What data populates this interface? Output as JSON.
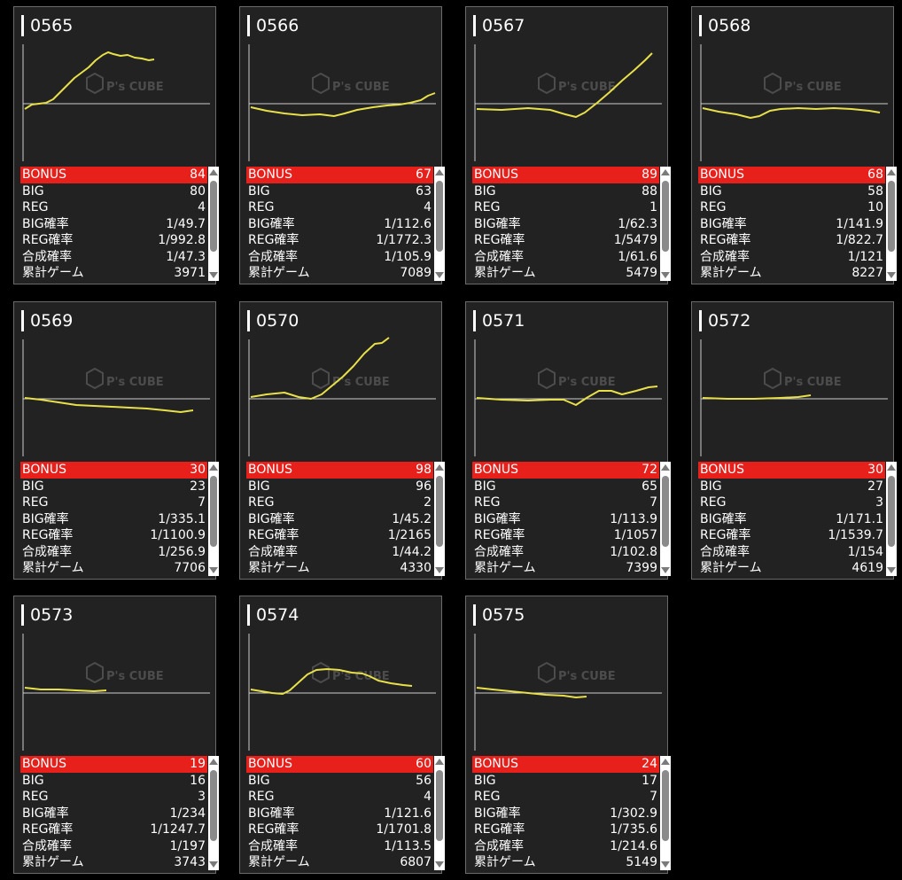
{
  "labels": {
    "bonus": "BONUS",
    "big": "BIG",
    "reg": "REG",
    "big_rate": "BIG確率",
    "reg_rate": "REG確率",
    "total_rate": "合成確率",
    "total_games": "累計ゲーム"
  },
  "watermark": "P's CUBE",
  "colors": {
    "graph_line": "#e8e04a",
    "bonus_bg": "#e8201b",
    "card_bg": "#222222"
  },
  "machines": [
    {
      "number": "0565",
      "bonus": "84",
      "big": "80",
      "reg": "4",
      "big_rate": "1/49.7",
      "reg_rate": "1/992.8",
      "total_rate": "1/47.3",
      "games": "3971"
    },
    {
      "number": "0566",
      "bonus": "67",
      "big": "63",
      "reg": "4",
      "big_rate": "1/112.6",
      "reg_rate": "1/1772.3",
      "total_rate": "1/105.9",
      "games": "7089"
    },
    {
      "number": "0567",
      "bonus": "89",
      "big": "88",
      "reg": "1",
      "big_rate": "1/62.3",
      "reg_rate": "1/5479",
      "total_rate": "1/61.6",
      "games": "5479"
    },
    {
      "number": "0568",
      "bonus": "68",
      "big": "58",
      "reg": "10",
      "big_rate": "1/141.9",
      "reg_rate": "1/822.7",
      "total_rate": "1/121",
      "games": "8227"
    },
    {
      "number": "0569",
      "bonus": "30",
      "big": "23",
      "reg": "7",
      "big_rate": "1/335.1",
      "reg_rate": "1/1100.9",
      "total_rate": "1/256.9",
      "games": "7706"
    },
    {
      "number": "0570",
      "bonus": "98",
      "big": "96",
      "reg": "2",
      "big_rate": "1/45.2",
      "reg_rate": "1/2165",
      "total_rate": "1/44.2",
      "games": "4330"
    },
    {
      "number": "0571",
      "bonus": "72",
      "big": "65",
      "reg": "7",
      "big_rate": "1/113.9",
      "reg_rate": "1/1057",
      "total_rate": "1/102.8",
      "games": "7399"
    },
    {
      "number": "0572",
      "bonus": "30",
      "big": "27",
      "reg": "3",
      "big_rate": "1/171.1",
      "reg_rate": "1/1539.7",
      "total_rate": "1/154",
      "games": "4619"
    },
    {
      "number": "0573",
      "bonus": "19",
      "big": "16",
      "reg": "3",
      "big_rate": "1/234",
      "reg_rate": "1/1247.7",
      "total_rate": "1/197",
      "games": "3743"
    },
    {
      "number": "0574",
      "bonus": "60",
      "big": "56",
      "reg": "4",
      "big_rate": "1/121.6",
      "reg_rate": "1/1701.8",
      "total_rate": "1/113.5",
      "games": "6807"
    },
    {
      "number": "0575",
      "bonus": "24",
      "big": "17",
      "reg": "7",
      "big_rate": "1/302.9",
      "reg_rate": "1/735.6",
      "total_rate": "1/214.6",
      "games": "5149"
    }
  ]
}
